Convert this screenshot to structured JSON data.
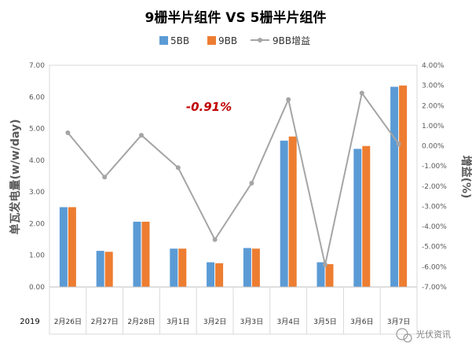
{
  "chart_data": {
    "type": "bar",
    "title": "9栅半片组件   VS   5栅半片组件",
    "categories": [
      "2月26日",
      "2月27日",
      "2月28日",
      "3月1日",
      "3月2日",
      "3月3日",
      "3月4日",
      "3月5日",
      "3月6日",
      "3月7日"
    ],
    "year_label": "2019",
    "ylabel": "单瓦发电量(w/w/day)",
    "y2label": "增益(%)",
    "ylim": [
      0,
      7
    ],
    "y_ticks": [
      "0.00",
      "1.00",
      "2.00",
      "3.00",
      "4.00",
      "5.00",
      "6.00",
      "7.00"
    ],
    "y2lim": [
      -7,
      4
    ],
    "y2_ticks": [
      "-7.00%",
      "-6.00%",
      "-5.00%",
      "-4.00%",
      "-3.00%",
      "-2.00%",
      "-1.00%",
      "0.00%",
      "1.00%",
      "2.00%",
      "3.00%",
      "4.00%"
    ],
    "legend_position": "top-center",
    "series": [
      {
        "name": "5BB",
        "type": "bar",
        "color": "#5b9bd5",
        "axis": "left",
        "values": [
          2.52,
          1.14,
          2.06,
          1.21,
          0.78,
          1.23,
          4.62,
          0.78,
          4.36,
          6.32
        ]
      },
      {
        "name": "9BB",
        "type": "bar",
        "color": "#ed7d31",
        "axis": "left",
        "values": [
          2.52,
          1.11,
          2.06,
          1.21,
          0.75,
          1.21,
          4.75,
          0.72,
          4.45,
          6.36
        ]
      },
      {
        "name": "9BB增益",
        "type": "line",
        "color": "#a5a5a5",
        "axis": "right",
        "values": [
          0.65,
          -1.55,
          0.53,
          -1.08,
          -4.65,
          -1.85,
          2.3,
          -5.9,
          2.62,
          0.1
        ]
      }
    ],
    "annotation": "-0.91%"
  },
  "watermark": "光伏资讯"
}
